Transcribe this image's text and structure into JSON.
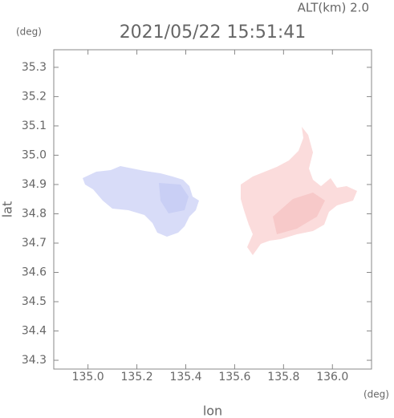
{
  "chart_data": {
    "type": "map",
    "title": "2021/05/22 15:51:41",
    "altitude": "ALT(km) 2.0",
    "y_unit": "(deg)",
    "x_unit": "(deg)",
    "ylabel": "lat",
    "xlabel": "lon",
    "xlim": [
      134.86,
      136.16
    ],
    "ylim": [
      34.27,
      35.36
    ],
    "xticks": [
      {
        "value": 135,
        "label": "135.0"
      },
      135.2,
      135.4,
      135.6,
      135.8,
      {
        "value": 136,
        "label": "136.0"
      }
    ],
    "yticks": [
      34.3,
      34.4,
      34.5,
      34.6,
      34.7,
      34.8,
      34.9,
      {
        "value": 35,
        "label": "35.0"
      },
      35.1,
      35.2,
      35.3
    ]
  }
}
